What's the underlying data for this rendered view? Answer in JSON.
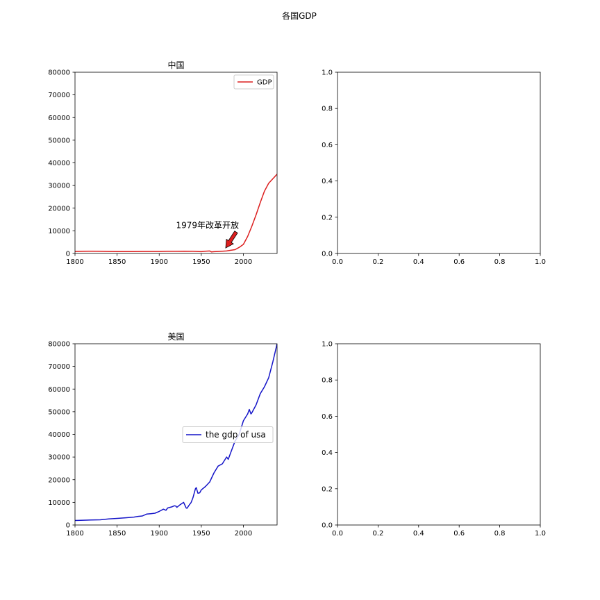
{
  "figure": {
    "suptitle": "各国GDP"
  },
  "chart_data": [
    {
      "type": "line",
      "title": "中国",
      "xlim": [
        1800,
        2040
      ],
      "ylim": [
        0,
        80000
      ],
      "xticks": [
        1800,
        1850,
        1900,
        1950,
        2000
      ],
      "yticks": [
        0,
        10000,
        20000,
        30000,
        40000,
        50000,
        60000,
        70000,
        80000
      ],
      "legend": {
        "position": "upper-right",
        "entries": [
          "GDP"
        ]
      },
      "series": [
        {
          "name": "GDP",
          "color": "#dc1e1e",
          "x": [
            1800,
            1810,
            1820,
            1830,
            1840,
            1850,
            1860,
            1870,
            1880,
            1890,
            1900,
            1910,
            1920,
            1930,
            1940,
            1945,
            1950,
            1955,
            1960,
            1962,
            1965,
            1970,
            1975,
            1980,
            1985,
            1990,
            1995,
            2000,
            2005,
            2010,
            2015,
            2020,
            2025,
            2030,
            2040
          ],
          "y": [
            900,
            950,
            1000,
            950,
            900,
            850,
            850,
            850,
            900,
            900,
            900,
            950,
            950,
            1000,
            950,
            900,
            800,
            1000,
            1100,
            700,
            800,
            900,
            1000,
            1100,
            1400,
            1700,
            2700,
            4000,
            7500,
            12000,
            17000,
            22500,
            27500,
            31000,
            35000
          ]
        }
      ],
      "annotations": [
        {
          "text": "1979年改革开放",
          "xy": [
            1979,
            1200
          ],
          "xytext": [
            1920,
            10000
          ],
          "arrow_color": "#dc1e1e"
        }
      ]
    },
    {
      "type": "line",
      "xlim": [
        0,
        1
      ],
      "ylim": [
        0,
        1
      ],
      "xticks": [
        "0.0",
        "0.2",
        "0.4",
        "0.6",
        "0.8",
        "1.0"
      ],
      "yticks": [
        "0.0",
        "0.2",
        "0.4",
        "0.6",
        "0.8",
        "1.0"
      ],
      "series": []
    },
    {
      "type": "line",
      "title": "美国",
      "xlim": [
        1800,
        2040
      ],
      "ylim": [
        0,
        80000
      ],
      "xticks": [
        1800,
        1850,
        1900,
        1950,
        2000
      ],
      "yticks": [
        0,
        10000,
        20000,
        30000,
        40000,
        50000,
        60000,
        70000,
        80000
      ],
      "legend": {
        "position": "center-right",
        "entries": [
          "the gdp of usa"
        ]
      },
      "series": [
        {
          "name": "the gdp of usa",
          "color": "#1414c8",
          "x": [
            1800,
            1810,
            1820,
            1830,
            1840,
            1850,
            1860,
            1870,
            1875,
            1880,
            1885,
            1890,
            1895,
            1900,
            1905,
            1908,
            1910,
            1915,
            1918,
            1920,
            1921,
            1925,
            1929,
            1930,
            1932,
            1933,
            1935,
            1938,
            1940,
            1943,
            1944,
            1946,
            1948,
            1950,
            1955,
            1960,
            1965,
            1970,
            1975,
            1980,
            1982,
            1985,
            1990,
            1995,
            2000,
            2005,
            2007,
            2009,
            2010,
            2015,
            2020,
            2025,
            2030,
            2035,
            2040
          ],
          "y": [
            2000,
            2100,
            2200,
            2300,
            2700,
            2900,
            3200,
            3500,
            3800,
            4000,
            4800,
            5000,
            5200,
            6000,
            7000,
            6500,
            7500,
            8000,
            8500,
            8300,
            7800,
            9000,
            10000,
            9200,
            7500,
            7400,
            8500,
            10000,
            12000,
            16000,
            16500,
            14000,
            14200,
            15500,
            17000,
            19000,
            23000,
            26000,
            27000,
            30000,
            29000,
            32000,
            37000,
            40000,
            46000,
            49000,
            51000,
            49000,
            49500,
            53000,
            58000,
            61000,
            65000,
            72000,
            80000
          ]
        }
      ]
    },
    {
      "type": "line",
      "xlim": [
        0,
        1
      ],
      "ylim": [
        0,
        1
      ],
      "xticks": [
        "0.0",
        "0.2",
        "0.4",
        "0.6",
        "0.8",
        "1.0"
      ],
      "yticks": [
        "0.0",
        "0.2",
        "0.4",
        "0.6",
        "0.8",
        "1.0"
      ],
      "series": []
    }
  ]
}
